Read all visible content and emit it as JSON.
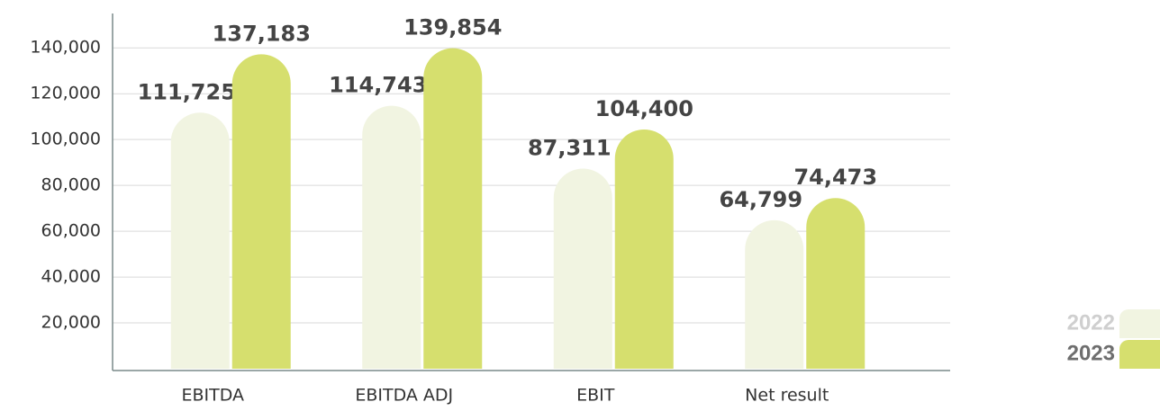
{
  "chart_data": {
    "type": "bar",
    "categories": [
      "EBITDA",
      "EBITDA ADJ",
      "EBIT",
      "Net result"
    ],
    "series": [
      {
        "name": "2022",
        "color": "#f1f4e1",
        "values": [
          111725,
          114743,
          87311,
          64799
        ],
        "value_labels": [
          "111,725",
          "114,743",
          "87,311",
          "64,799"
        ]
      },
      {
        "name": "2023",
        "color": "#d6df6e",
        "values": [
          137183,
          139854,
          104400,
          74473
        ],
        "value_labels": [
          "137,183",
          "139,854",
          "104,400",
          "74,473"
        ]
      }
    ],
    "ylim": [
      0,
      155000
    ],
    "yticks": [
      {
        "value": 20000,
        "label": "20,000"
      },
      {
        "value": 40000,
        "label": "40,000"
      },
      {
        "value": 60000,
        "label": "60,000"
      },
      {
        "value": 80000,
        "label": "80,000"
      },
      {
        "value": 100000,
        "label": "100,000"
      },
      {
        "value": 120000,
        "label": "120,000"
      },
      {
        "value": 140000,
        "label": "140,000"
      }
    ],
    "grid": true,
    "legend": "right"
  }
}
